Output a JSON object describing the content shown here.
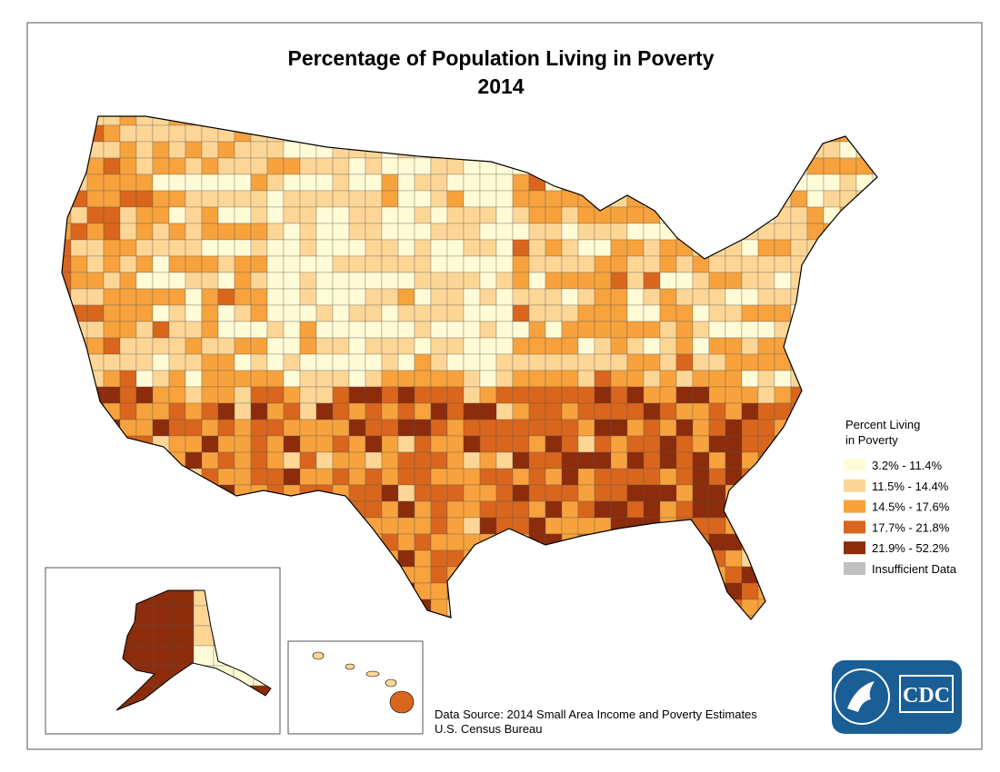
{
  "title": "Percentage of Population Living in Poverty",
  "subtitle": "2014",
  "legend": {
    "title_lines": [
      "Percent Living",
      "in Poverty"
    ],
    "items": [
      {
        "label": "3.2% - 11.4%",
        "color": "#fffbd6"
      },
      {
        "label": "11.5% - 14.4%",
        "color": "#fdd696"
      },
      {
        "label": "14.5% - 17.6%",
        "color": "#f7a23c"
      },
      {
        "label": "17.7% - 21.8%",
        "color": "#d9661c"
      },
      {
        "label": "21.9% - 52.2%",
        "color": "#8c2c0b"
      },
      {
        "label": "Insufficient Data",
        "color": "#c0c0c0"
      }
    ]
  },
  "source": [
    "Data Source: 2014 Small Area Income and Poverty Estimates",
    "U.S. Census Bureau"
  ],
  "logo": "CDC"
}
